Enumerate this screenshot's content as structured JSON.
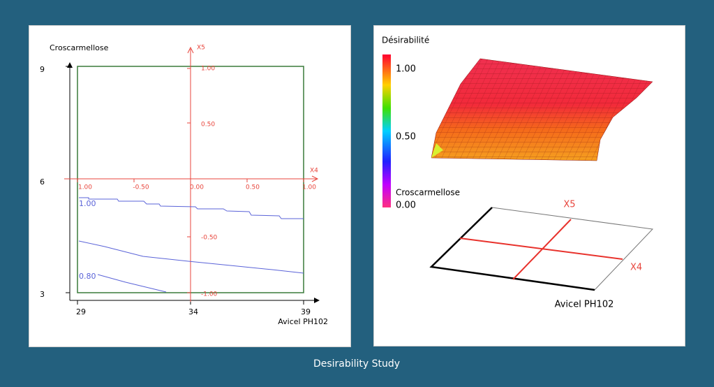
{
  "caption": "Desirability Study",
  "contour_panel": {
    "y_axis_title": "Croscarmellose",
    "x_axis_title": "Avicel PH102",
    "y_ticks": [
      "9",
      "6",
      "3"
    ],
    "x_ticks": [
      "29",
      "34",
      "39"
    ],
    "x5_label": "X5",
    "x4_label": "X4",
    "x5_ticks": [
      "1.00",
      "0.50",
      "-0.50",
      "-1.00"
    ],
    "x4_ticks": [
      "1.00",
      "-0.50",
      "0.00",
      "0.50",
      "1.00"
    ],
    "contour_labels": [
      "1.00",
      "0.80"
    ]
  },
  "surface_panel": {
    "title": "Désirabilité",
    "scale_labels": [
      "1.00",
      "0.50",
      "0.00"
    ],
    "y_axis_title": "Croscarmellose",
    "x5_label": "X5",
    "x4_label": "X4",
    "x_axis_title": "Avicel PH102"
  }
}
